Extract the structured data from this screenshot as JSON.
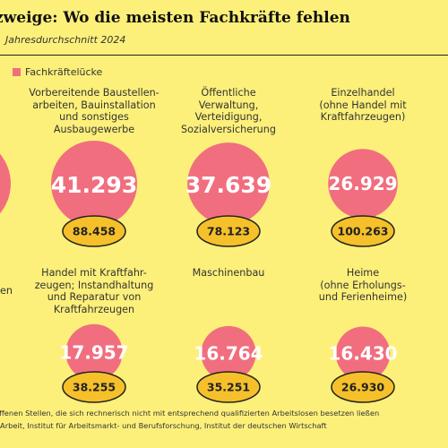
{
  "header": {
    "title": "zweige: Wo die meisten Fachkräfte fehlen",
    "subtitle": "Jahresdurchschnitt 2024"
  },
  "legend": {
    "label": "Fachkräftelücke"
  },
  "chart_data": {
    "type": "bubble",
    "series": [
      {
        "name": "Fachkräftelücke",
        "color": "#f16e7f"
      }
    ],
    "categories": [
      {
        "label": "",
        "gap": null,
        "gap_partial": "3",
        "value2": null
      },
      {
        "label": "Vorbereitende Baustellen-\narbeiten, Bauinstallation\nund sonstiges\nAusbaugewerbe",
        "gap": 41293,
        "gap_text": "41.293",
        "value2": 88458,
        "value2_text": "88.458"
      },
      {
        "label": "Öffentliche\nVerwaltung,\nVerteidigung,\nSozialversicherung",
        "gap": 37639,
        "gap_text": "37.639",
        "value2": 78123,
        "value2_text": "78.123"
      },
      {
        "label": "Einzelhandel\n(ohne Handel mit\nKraftfahrzeugen)",
        "gap": 26929,
        "gap_text": "26.929",
        "value2": 100263,
        "value2_text": "100.263"
      },
      {
        "label": "en",
        "gap": null,
        "value2": null
      },
      {
        "label": "Handel mit Kraftfahr-\nzeugen; Instandhaltung\nund Reparatur von\nKraftfahrzeugen",
        "gap": 17957,
        "gap_text": "17.957",
        "value2": 38255,
        "value2_text": "38.255"
      },
      {
        "label": "Maschinenbau",
        "gap": 16764,
        "gap_text": "16.764",
        "value2": 35251,
        "value2_text": "35.251"
      },
      {
        "label": "Heime\n(ohne Erholungs-\nund Ferienheime)",
        "gap": 16430,
        "gap_text": "16.430",
        "value2": 26930,
        "value2_text": "26.930"
      }
    ]
  },
  "footnotes": {
    "line1": "offenen Stellen, die sich rechnerisch nicht mit entsprechend qualifizierten Arbeitslosen besetzen ließen",
    "line2": "r Arbeit, Institut für Arbeitsmarkt- und Berufsforschung, Institut der deutschen Wirtschaft"
  },
  "colors": {
    "background": "#fdf07a",
    "gap_bubble": "#f16e7f",
    "second_bubble": "#f5c02a",
    "outline": "#222222"
  }
}
